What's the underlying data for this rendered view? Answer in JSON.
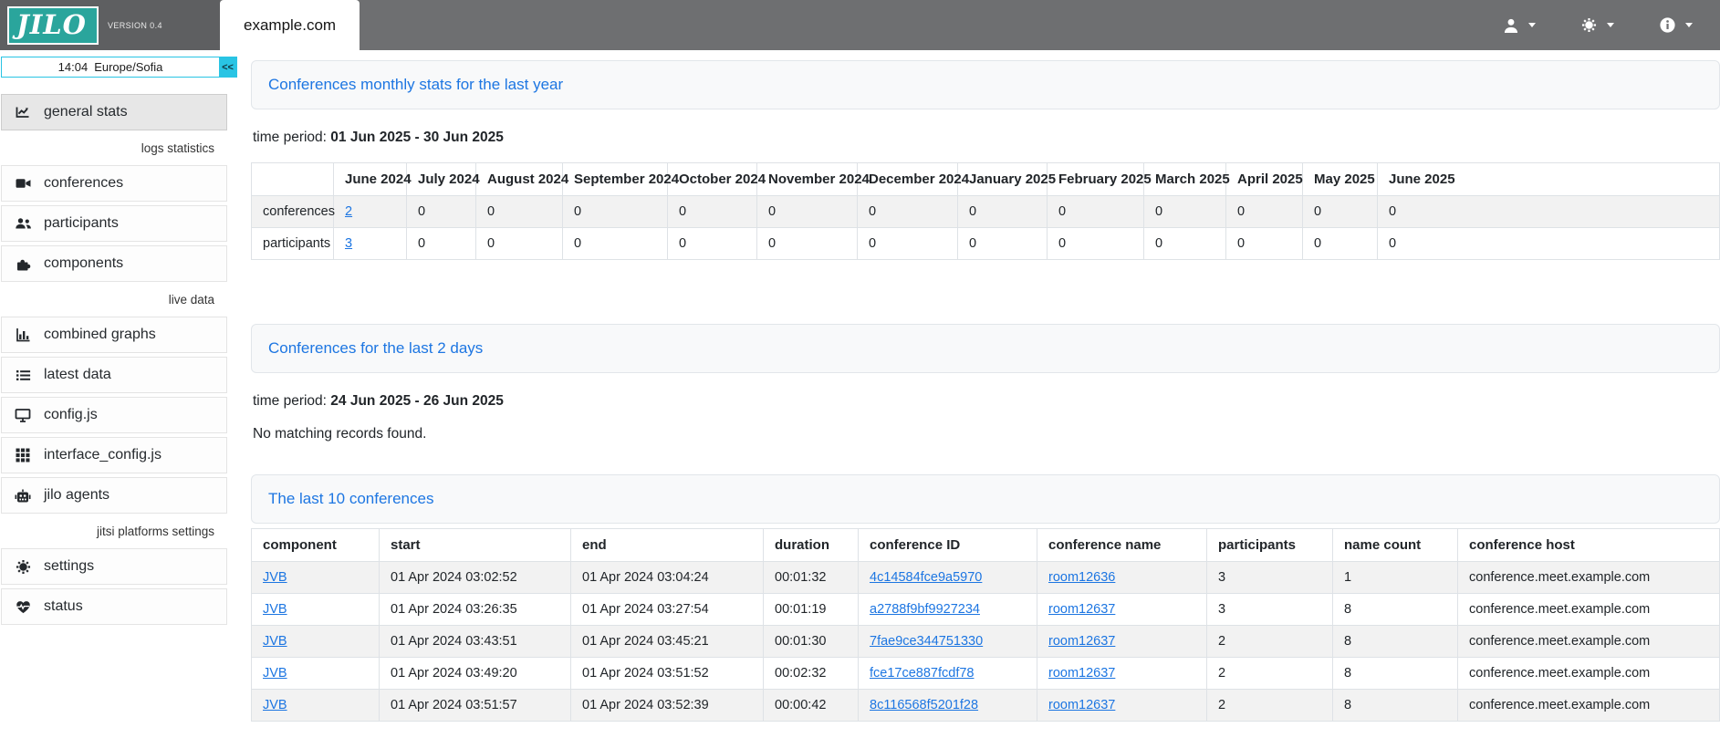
{
  "header": {
    "logo_text": "JILO",
    "version_label": "VERSION 0.4",
    "active_tab": "example.com",
    "actions": [
      {
        "id": "user-menu",
        "icon": "user-icon"
      },
      {
        "id": "settings-menu",
        "icon": "gear-icon"
      },
      {
        "id": "info-menu",
        "icon": "info-icon"
      }
    ]
  },
  "sidebar": {
    "clock_time": "14:04",
    "clock_timezone": "Europe/Sofia",
    "collapse_button_label": "<<",
    "items": [
      {
        "type": "item",
        "id": "general-stats",
        "icon": "chart-line-icon",
        "label": "general stats",
        "active": true
      },
      {
        "type": "section",
        "label": "logs statistics"
      },
      {
        "type": "item",
        "id": "conferences",
        "icon": "video-camera-icon",
        "label": "conferences"
      },
      {
        "type": "item",
        "id": "participants",
        "icon": "users-icon",
        "label": "participants"
      },
      {
        "type": "item",
        "id": "components",
        "icon": "puzzle-piece-icon",
        "label": "components"
      },
      {
        "type": "section",
        "label": "live data"
      },
      {
        "type": "item",
        "id": "combined-graphs",
        "icon": "bar-chart-icon",
        "label": "combined graphs"
      },
      {
        "type": "item",
        "id": "latest-data",
        "icon": "list-icon",
        "label": "latest data"
      },
      {
        "type": "item",
        "id": "config-js",
        "icon": "monitor-icon",
        "label": "config.js"
      },
      {
        "type": "item",
        "id": "interface-config-js",
        "icon": "grid-icon",
        "label": "interface_config.js"
      },
      {
        "type": "item",
        "id": "jilo-agents",
        "icon": "robot-icon",
        "label": "jilo agents"
      },
      {
        "type": "section",
        "label": "jitsi platforms settings"
      },
      {
        "type": "item",
        "id": "settings",
        "icon": "gear-icon",
        "label": "settings"
      },
      {
        "type": "item",
        "id": "status",
        "icon": "heart-pulse-icon",
        "label": "status"
      }
    ]
  },
  "main": {
    "monthly": {
      "title": "Conferences monthly stats for the last year",
      "time_period_label": "time period:",
      "time_period": "01 Jun 2025 - 30 Jun 2025",
      "table": {
        "columns": [
          "",
          "June 2024",
          "July 2024",
          "August 2024",
          "September 2024",
          "October 2024",
          "November 2024",
          "December 2024",
          "January 2025",
          "February 2025",
          "March 2025",
          "April 2025",
          "May 2025",
          "June 2025"
        ],
        "rows": [
          {
            "label": "conferences",
            "values": [
              "2",
              "0",
              "0",
              "0",
              "0",
              "0",
              "0",
              "0",
              "0",
              "0",
              "0",
              "0",
              "0"
            ],
            "link_indices": [
              0
            ]
          },
          {
            "label": "participants",
            "values": [
              "3",
              "0",
              "0",
              "0",
              "0",
              "0",
              "0",
              "0",
              "0",
              "0",
              "0",
              "0",
              "0"
            ],
            "link_indices": [
              0
            ]
          }
        ]
      }
    },
    "last_2_days": {
      "title": "Conferences for the last 2 days",
      "time_period_label": "time period:",
      "time_period": "24 Jun 2025 - 26 Jun 2025",
      "empty_message": "No matching records found."
    },
    "last_10": {
      "title": "The last 10 conferences",
      "table": {
        "columns": [
          "component",
          "start",
          "end",
          "duration",
          "conference ID",
          "conference name",
          "participants",
          "name count",
          "conference host"
        ],
        "link_columns": [
          0,
          4,
          5
        ],
        "rows": [
          [
            "JVB",
            "01 Apr 2024 03:02:52",
            "01 Apr 2024 03:04:24",
            "00:01:32",
            "4c14584fce9a5970",
            "room12636",
            "3",
            "1",
            "conference.meet.example.com"
          ],
          [
            "JVB",
            "01 Apr 2024 03:26:35",
            "01 Apr 2024 03:27:54",
            "00:01:19",
            "a2788f9bf9927234",
            "room12637",
            "3",
            "8",
            "conference.meet.example.com"
          ],
          [
            "JVB",
            "01 Apr 2024 03:43:51",
            "01 Apr 2024 03:45:21",
            "00:01:30",
            "7fae9ce344751330",
            "room12637",
            "2",
            "8",
            "conference.meet.example.com"
          ],
          [
            "JVB",
            "01 Apr 2024 03:49:20",
            "01 Apr 2024 03:51:52",
            "00:02:32",
            "fce17ce887fcdf78",
            "room12637",
            "2",
            "8",
            "conference.meet.example.com"
          ],
          [
            "JVB",
            "01 Apr 2024 03:51:57",
            "01 Apr 2024 03:52:39",
            "00:00:42",
            "8c116568f5201f28",
            "room12637",
            "2",
            "8",
            "conference.meet.example.com"
          ]
        ]
      }
    }
  },
  "colors": {
    "accent_teal": "#2aa59c",
    "accent_cyan": "#29c4e4",
    "link_blue": "#1d76e2",
    "header_gray": "#6e6f71",
    "header_dark_gray": "#5e5f61",
    "row_stripe": "#f2f2f2"
  }
}
